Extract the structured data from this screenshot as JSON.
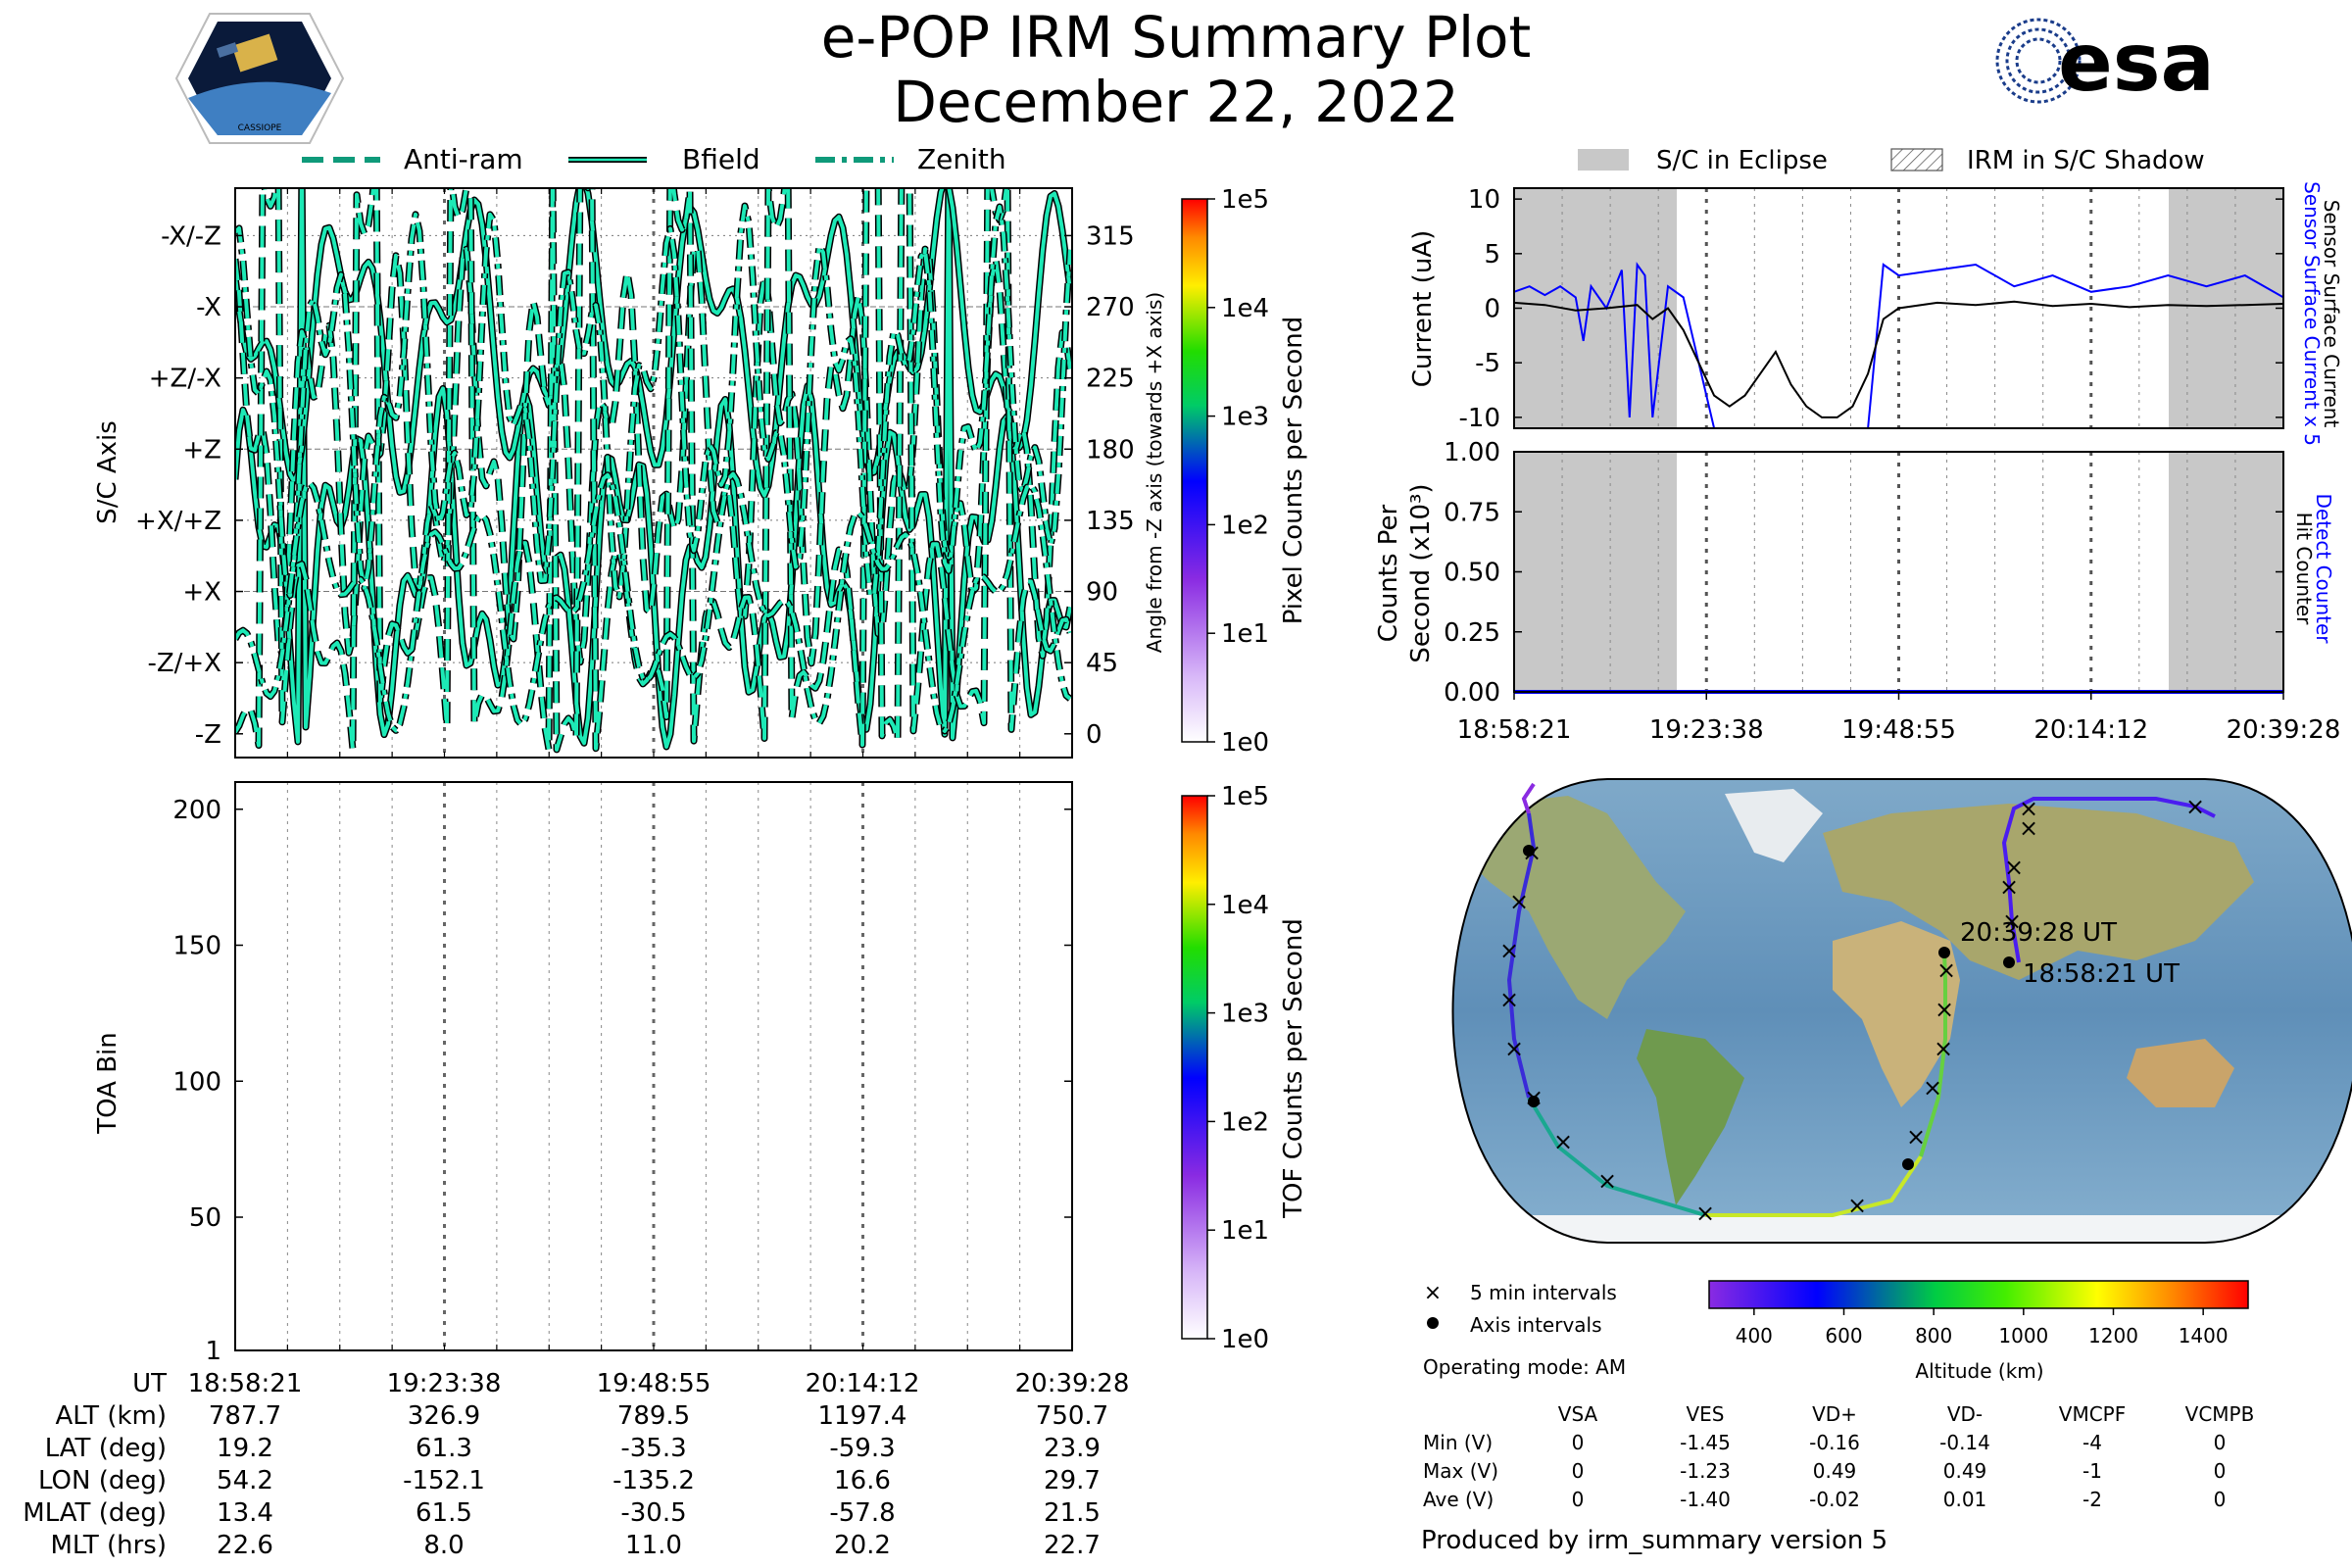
{
  "title": "e-POP IRM Summary Plot",
  "date": "December 22, 2022",
  "logos": {
    "left_caption": "CASSIOPE",
    "right_text": "esa"
  },
  "colors": {
    "trace_fill": "#1de9b6",
    "trace_edge": "#000000",
    "sensor_blue": "#0000ff",
    "eclipse_gray": "#c8c8c8"
  },
  "chart_data": [
    {
      "id": "sc-axis-panel",
      "type": "line",
      "legend": [
        "Anti-ram",
        "Bfield",
        "Zenith"
      ],
      "ylabel": "S/C Axis",
      "ylabel_right": "Angle from -Z axis (towards +X axis)",
      "y_tick_labels": [
        "-Z",
        "-Z/+X",
        "+X",
        "+X/+Z",
        "+Z",
        "+Z/-X",
        "-X",
        "-X/-Z"
      ],
      "y2_ticks": [
        0,
        45,
        90,
        135,
        180,
        225,
        270,
        315
      ],
      "ylim": [
        -15,
        345
      ],
      "colorbar": {
        "label": "Pixel Counts per Second",
        "ticks": [
          "1e0",
          "1e1",
          "1e2",
          "1e3",
          "1e4",
          "1e5"
        ]
      }
    },
    {
      "id": "toa-panel",
      "type": "heatmap",
      "ylabel": "TOA Bin",
      "y_ticks": [
        1,
        50,
        100,
        150,
        200
      ],
      "ylim": [
        1,
        210
      ],
      "colorbar": {
        "label": "TOF Counts per Second",
        "ticks": [
          "1e0",
          "1e1",
          "1e2",
          "1e3",
          "1e4",
          "1e5"
        ]
      }
    },
    {
      "id": "current-panel",
      "type": "line",
      "ylabel": "Current (uA)",
      "y_ticks": [
        -10,
        -5,
        0,
        5,
        10
      ],
      "ylim": [
        -11,
        11
      ],
      "right_label_blue": "Sensor Surface Current x 5",
      "right_label_black": "Sensor Surface Current",
      "legend": [
        "S/C in Eclipse",
        "IRM in S/C Shadow"
      ],
      "series": [
        {
          "name": "Sensor Surface Current x 5",
          "color": "#0000ff",
          "x": [
            0,
            2,
            4,
            6,
            8,
            9,
            10,
            12,
            14,
            15,
            16,
            17,
            18,
            20,
            22,
            24,
            26,
            27,
            28,
            29,
            30,
            32,
            34,
            36,
            38,
            39,
            40,
            42,
            44,
            46,
            48,
            50,
            55,
            60,
            65,
            70,
            75,
            80,
            85,
            90,
            95,
            100
          ],
          "y": [
            1.5,
            2,
            1.2,
            2,
            1,
            -3,
            2,
            0,
            3.5,
            -10,
            4,
            3,
            -10,
            2,
            1,
            -5,
            -11,
            -11,
            -11,
            -11,
            -11,
            -11,
            -11,
            -11,
            -11,
            -11,
            -11,
            -11,
            -11,
            -11,
            4,
            3,
            3.5,
            4,
            2,
            3,
            1.5,
            2,
            3,
            2,
            3,
            1
          ]
        },
        {
          "name": "Sensor Surface Current",
          "color": "#000000",
          "x": [
            0,
            4,
            8,
            12,
            16,
            18,
            20,
            22,
            24,
            26,
            28,
            30,
            32,
            34,
            36,
            38,
            40,
            42,
            44,
            46,
            48,
            50,
            55,
            60,
            65,
            70,
            75,
            80,
            85,
            90,
            95,
            100
          ],
          "y": [
            0.5,
            0.3,
            -0.2,
            0,
            0.3,
            -1,
            0,
            -2,
            -5,
            -8,
            -9,
            -8,
            -6,
            -4,
            -7,
            -9,
            -10,
            -10,
            -9,
            -6,
            -1,
            0,
            0.5,
            0.3,
            0.6,
            0.2,
            0.4,
            0.1,
            0.3,
            0.2,
            0.3,
            0.4
          ]
        }
      ]
    },
    {
      "id": "counts-panel",
      "type": "line",
      "ylabel_line1": "Counts Per",
      "ylabel_line2": "Second (x10³)",
      "y_ticks": [
        "0.00",
        "0.25",
        "0.50",
        "0.75",
        "1.00"
      ],
      "ylim": [
        0,
        1
      ],
      "right_label_blue": "Detect Counter",
      "right_label_black": "Hit Counter",
      "series": [
        {
          "name": "Detect Counter",
          "color": "#0000ff",
          "x": [
            0,
            100
          ],
          "y": [
            0,
            0
          ]
        }
      ]
    },
    {
      "id": "orbit-map",
      "type": "scatter",
      "start_label": "18:58:21 UT",
      "end_label": "20:39:28 UT",
      "legend": [
        "5 min intervals",
        "Axis intervals"
      ],
      "colorbar": {
        "label": "Altitude (km)",
        "ticks": [
          400,
          600,
          800,
          1000,
          1200,
          1400
        ],
        "range": [
          300,
          1500
        ]
      }
    }
  ],
  "time_ticks": [
    "18:58:21",
    "19:23:38",
    "19:48:55",
    "20:14:12",
    "20:39:28"
  ],
  "ephemeris_rows": [
    {
      "label": "UT",
      "values": [
        "18:58:21",
        "19:23:38",
        "19:48:55",
        "20:14:12",
        "20:39:28"
      ]
    },
    {
      "label": "ALT (km)",
      "values": [
        "787.7",
        "326.9",
        "789.5",
        "1197.4",
        "750.7"
      ]
    },
    {
      "label": "LAT (deg)",
      "values": [
        "19.2",
        "61.3",
        "-35.3",
        "-59.3",
        "23.9"
      ]
    },
    {
      "label": "LON (deg)",
      "values": [
        "54.2",
        "-152.1",
        "-135.2",
        "16.6",
        "29.7"
      ]
    },
    {
      "label": "MLAT (deg)",
      "values": [
        "13.4",
        "61.5",
        "-30.5",
        "-57.8",
        "21.5"
      ]
    },
    {
      "label": "MLT (hrs)",
      "values": [
        "22.6",
        "8.0",
        "11.0",
        "20.2",
        "22.7"
      ]
    }
  ],
  "operating_mode": "Operating mode: AM",
  "voltage_table": {
    "headers": [
      "VSA",
      "VES",
      "VD+",
      "VD-",
      "VMCPF",
      "VCMPB"
    ],
    "rows": [
      {
        "label": "Min (V)",
        "values": [
          "0",
          "-1.45",
          "-0.16",
          "-0.14",
          "-4",
          "0"
        ]
      },
      {
        "label": "Max (V)",
        "values": [
          "0",
          "-1.23",
          "0.49",
          "0.49",
          "-1",
          "0"
        ]
      },
      {
        "label": "Ave (V)",
        "values": [
          "0",
          "-1.40",
          "-0.02",
          "0.01",
          "-2",
          "0"
        ]
      }
    ]
  },
  "footer": "Produced by irm_summary version 5"
}
